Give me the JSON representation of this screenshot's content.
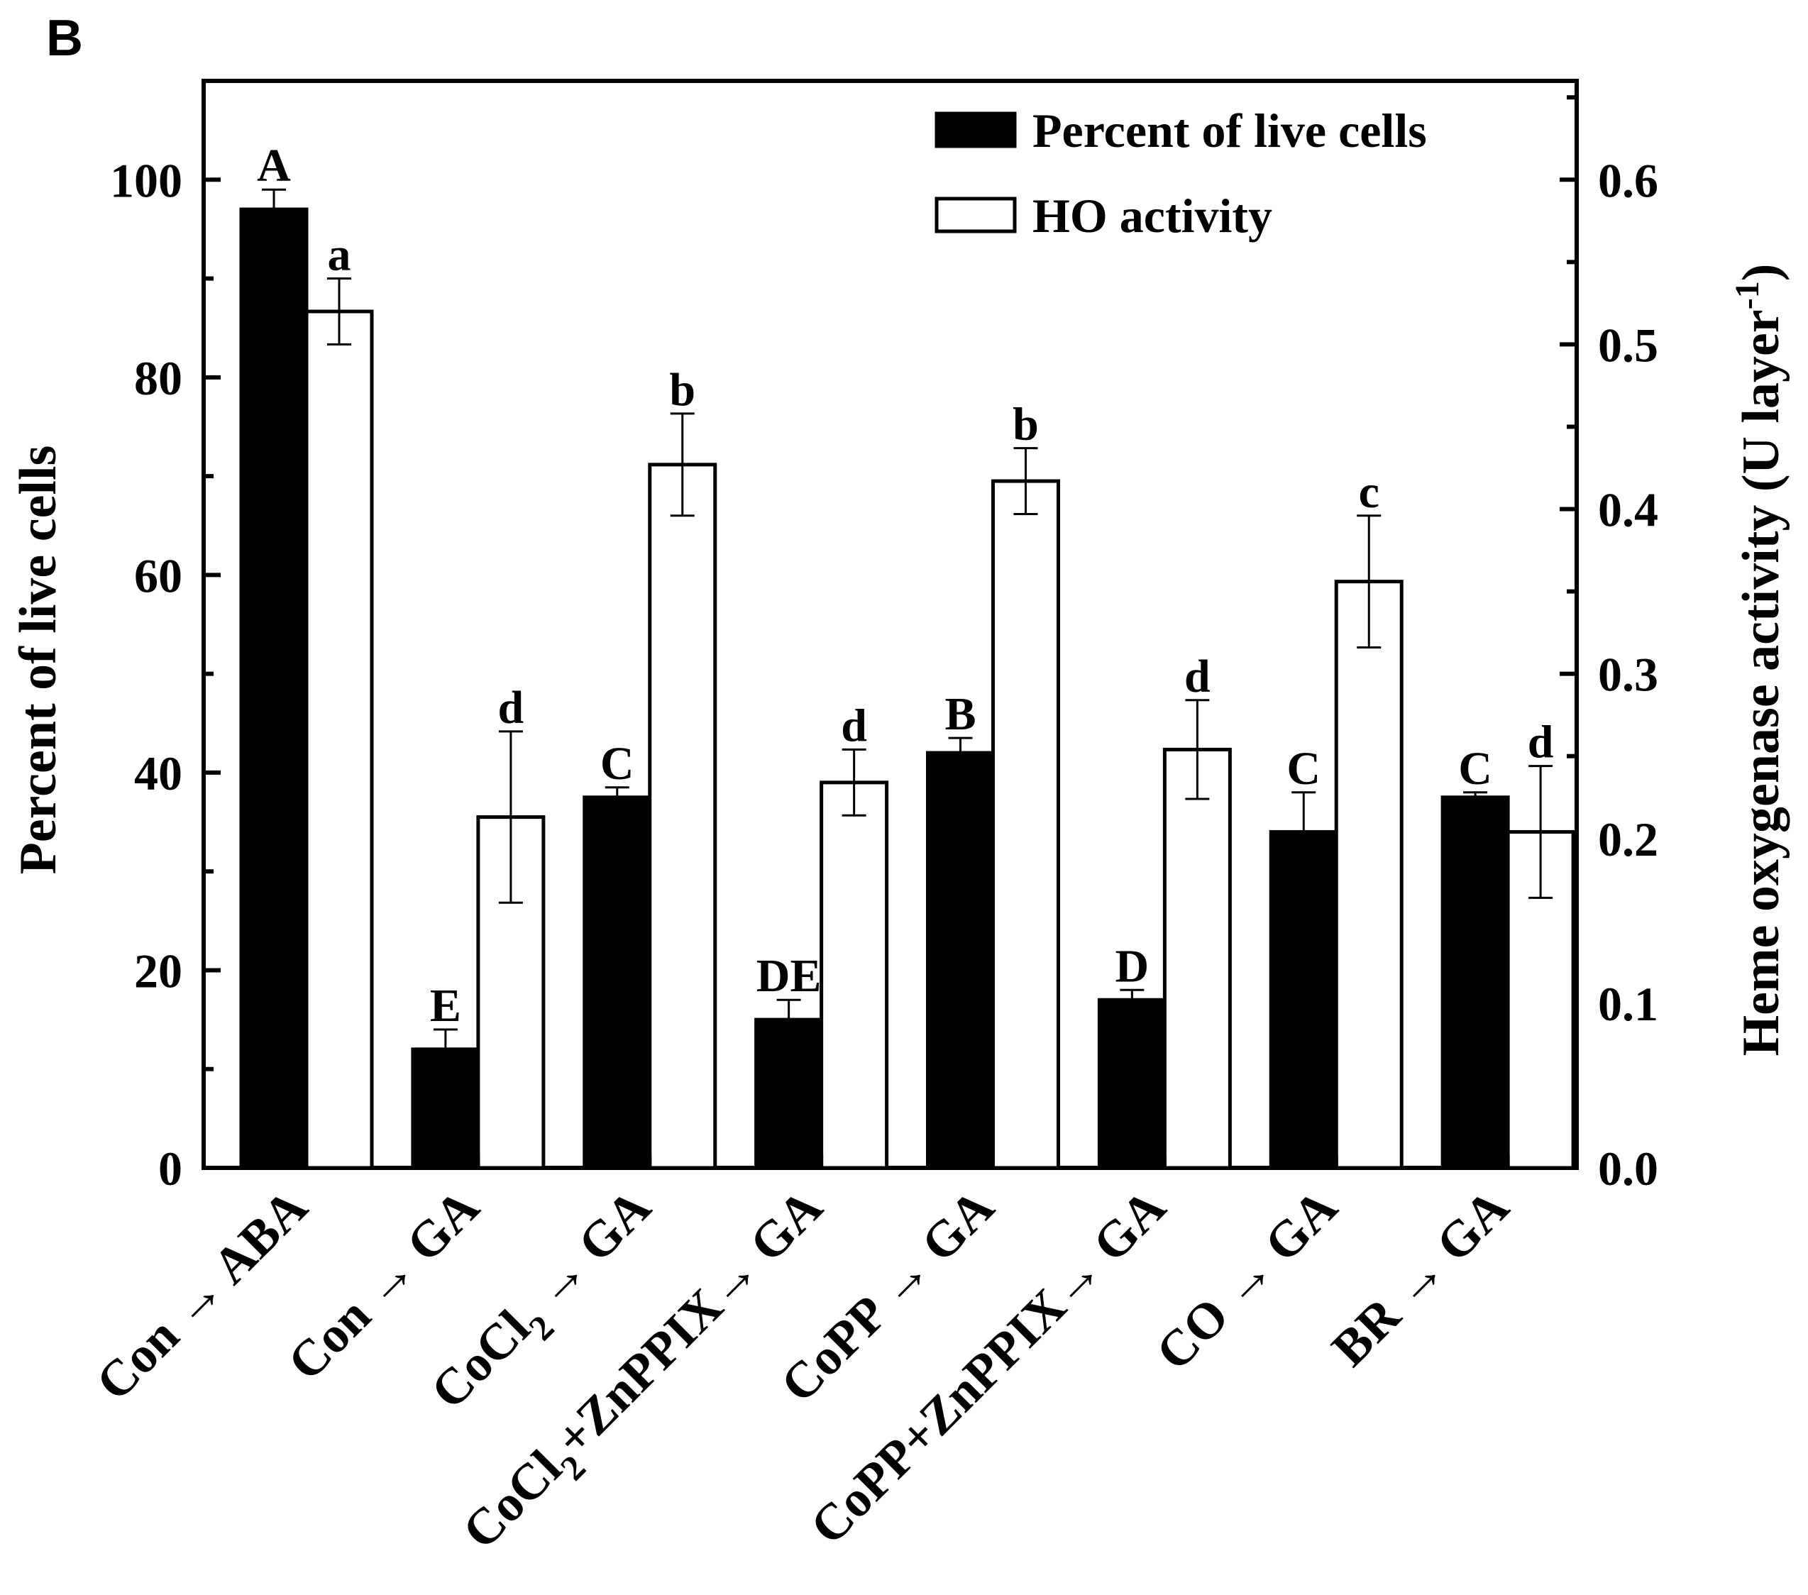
{
  "chart_data": {
    "type": "bar",
    "panel_label": "B",
    "categories": [
      {
        "main": "Con → ABA",
        "sub": "",
        "rest": ""
      },
      {
        "main": "Con → GA",
        "sub": "",
        "rest": ""
      },
      {
        "main": "CoCl",
        "sub": "2",
        "rest": " → GA"
      },
      {
        "main": "CoCl",
        "sub": "2",
        "rest": "+ZnPPIX→ GA"
      },
      {
        "main": "CoPP → GA",
        "sub": "",
        "rest": ""
      },
      {
        "main": "CoPP+ZnPPIX→ GA",
        "sub": "",
        "rest": ""
      },
      {
        "main": "CO → GA",
        "sub": "",
        "rest": ""
      },
      {
        "main": "BR → GA",
        "sub": "",
        "rest": ""
      }
    ],
    "series": [
      {
        "name": "Percent of live cells",
        "axis": "left",
        "fill": "#000000",
        "values": [
          97,
          12,
          37.5,
          15,
          42,
          17,
          34,
          37.5
        ],
        "errors": [
          2,
          2,
          1,
          2,
          1.5,
          1,
          4,
          0.5
        ],
        "letters": [
          "A",
          "E",
          "C",
          "DE",
          "B",
          "D",
          "C",
          "C"
        ]
      },
      {
        "name": "HO activity",
        "axis": "right",
        "fill": "#ffffff",
        "values": [
          0.52,
          0.213,
          0.427,
          0.234,
          0.417,
          0.254,
          0.356,
          0.204
        ],
        "errors": [
          0.02,
          0.052,
          0.031,
          0.02,
          0.02,
          0.03,
          0.04,
          0.04
        ],
        "letters": [
          "a",
          "d",
          "b",
          "d",
          "b",
          "d",
          "c",
          "d"
        ]
      }
    ],
    "ylabel": "Percent of live cells",
    "ylim": [
      0,
      110
    ],
    "yticks": [
      0,
      20,
      40,
      60,
      80,
      100
    ],
    "y2label": "Heme oxygenase activity (U layer",
    "y2label_sup": "-1",
    "y2label_end": ")",
    "y2lim": [
      0,
      0.66
    ],
    "y2ticks": [
      "0.0",
      "0.1",
      "0.2",
      "0.3",
      "0.4",
      "0.5",
      "0.6"
    ],
    "legend_position": "top-right",
    "grid": false
  }
}
